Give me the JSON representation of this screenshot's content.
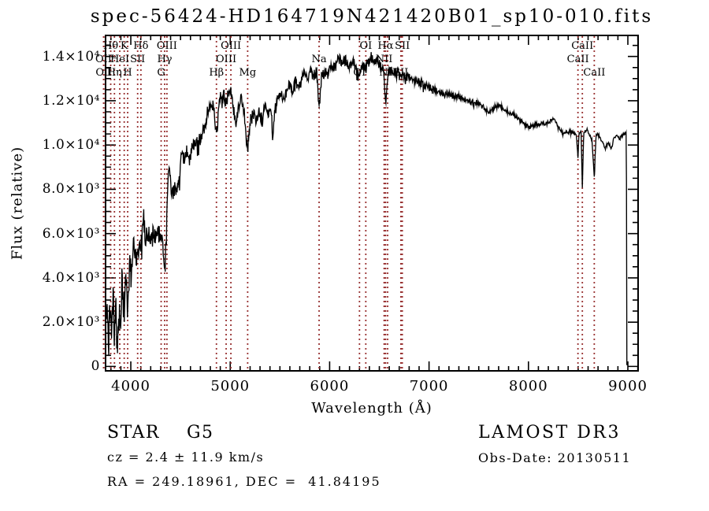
{
  "title": "spec-56424-HD164719N421420B01_sp10-010.fits",
  "colors": {
    "background": "#ffffff",
    "spectrum": "#000000",
    "frame": "#000000",
    "line_marker": "#993333",
    "text": "#000000"
  },
  "annotations": {
    "class_label": "STAR    G5",
    "survey": "LAMOST DR3",
    "cz": "cz = 2.4 ± 11.9 km/s",
    "obs_date": "Obs-Date: 20130511",
    "radec": "RA = 249.18961, DEC =  41.84195"
  },
  "chart_data": {
    "type": "line",
    "title": "spec-56424-HD164719N421420B01_sp10-010.fits",
    "xlabel": "Wavelength (Å)",
    "ylabel": "Flux (relative)",
    "xlim": [
      3746,
      9103
    ],
    "ylim": [
      -200,
      14950
    ],
    "grid": false,
    "xticks": {
      "values": [
        4000,
        5000,
        6000,
        7000,
        8000,
        9000
      ],
      "labels": [
        "4000",
        "5000",
        "6000",
        "7000",
        "8000",
        "9000"
      ]
    },
    "yticks": {
      "values": [
        0,
        2000,
        4000,
        6000,
        8000,
        10000,
        12000,
        14000
      ],
      "labels": [
        "0",
        "2.0×10³",
        "4.0×10³",
        "6.0×10³",
        "8.0×10³",
        "1.0×10⁴",
        "1.2×10⁴",
        "1.4×10⁴"
      ]
    },
    "x_minor_step": 100,
    "y_minor_step": 500,
    "spectral_lines": [
      {
        "name": "OII",
        "wavelength": 3726.0,
        "row": 2
      },
      {
        "name": "OII",
        "wavelength": 3728.8,
        "row": 3
      },
      {
        "name": "Hθ",
        "wavelength": 3797.9,
        "row": 1
      },
      {
        "name": "Hη",
        "wavelength": 3835.4,
        "row": 3
      },
      {
        "name": "HeI",
        "wavelength": 3889.0,
        "row": 2
      },
      {
        "name": "K",
        "wavelength": 3933.7,
        "row": 1
      },
      {
        "name": "H",
        "wavelength": 3968.5,
        "row": 3
      },
      {
        "name": "SII",
        "wavelength": 4068.6,
        "row": 2
      },
      {
        "name": "Hδ",
        "wavelength": 4101.7,
        "row": 1
      },
      {
        "name": "G",
        "wavelength": 4305.0,
        "row": 3
      },
      {
        "name": "Hγ",
        "wavelength": 4340.5,
        "row": 2
      },
      {
        "name": "OIII",
        "wavelength": 4363.2,
        "row": 1
      },
      {
        "name": "Hβ",
        "wavelength": 4861.3,
        "row": 3
      },
      {
        "name": "OIII",
        "wavelength": 4958.9,
        "row": 2
      },
      {
        "name": "OIII",
        "wavelength": 5006.8,
        "row": 1
      },
      {
        "name": "Mg",
        "wavelength": 5175.4,
        "row": 3
      },
      {
        "name": "Na",
        "wavelength": 5894.0,
        "row": 2
      },
      {
        "name": "OI",
        "wavelength": 6300.3,
        "row": 3
      },
      {
        "name": "OI",
        "wavelength": 6363.8,
        "row": 1
      },
      {
        "name": "NII",
        "wavelength": 6548.1,
        "row": 2
      },
      {
        "name": "Hα",
        "wavelength": 6562.8,
        "row": 1
      },
      {
        "name": "NII",
        "wavelength": 6583.5,
        "row": 3
      },
      {
        "name": "SII",
        "wavelength": 6716.4,
        "row": 3
      },
      {
        "name": "SII",
        "wavelength": 6730.8,
        "row": 1
      },
      {
        "name": "CaII",
        "wavelength": 8498.0,
        "row": 2
      },
      {
        "name": "CaII",
        "wavelength": 8542.1,
        "row": 1
      },
      {
        "name": "CaII",
        "wavelength": 8662.1,
        "row": 3
      }
    ],
    "envelope": {
      "wavelength": [
        3746,
        3760,
        3775,
        3790,
        3805,
        3820,
        3835,
        3850,
        3865,
        3880,
        3895,
        3910,
        3933,
        3950,
        3968,
        3985,
        4000,
        4030,
        4060,
        4090,
        4102,
        4130,
        4145,
        4170,
        4200,
        4230,
        4260,
        4290,
        4305,
        4320,
        4340,
        4355,
        4375,
        4395,
        4410,
        4430,
        4450,
        4470,
        4490,
        4510,
        4530,
        4560,
        4590,
        4620,
        4650,
        4680,
        4710,
        4740,
        4770,
        4800,
        4830,
        4861,
        4880,
        4900,
        4920,
        4940,
        4960,
        4980,
        5007,
        5030,
        5056,
        5080,
        5110,
        5140,
        5175,
        5200,
        5230,
        5260,
        5290,
        5320,
        5350,
        5380,
        5410,
        5429,
        5450,
        5480,
        5510,
        5540,
        5570,
        5600,
        5630,
        5660,
        5690,
        5720,
        5750,
        5780,
        5810,
        5840,
        5870,
        5894,
        5920,
        5950,
        5980,
        6010,
        6040,
        6070,
        6100,
        6130,
        6160,
        6190,
        6220,
        6250,
        6280,
        6300,
        6330,
        6360,
        6390,
        6420,
        6450,
        6480,
        6510,
        6540,
        6563,
        6590,
        6620,
        6650,
        6680,
        6710,
        6740,
        6770,
        6800,
        6850,
        6900,
        6950,
        7000,
        7050,
        7100,
        7150,
        7200,
        7250,
        7300,
        7350,
        7400,
        7450,
        7500,
        7550,
        7600,
        7650,
        7700,
        7750,
        7800,
        7850,
        7900,
        7950,
        8000,
        8050,
        8100,
        8150,
        8200,
        8255,
        8300,
        8350,
        8400,
        8450,
        8480,
        8498,
        8510,
        8530,
        8542,
        8556,
        8590,
        8620,
        8640,
        8662,
        8680,
        8710,
        8740,
        8770,
        8800,
        8835,
        8860,
        8890,
        8920,
        8950,
        8975,
        8985,
        8990
      ],
      "flux": [
        1600,
        3100,
        900,
        2600,
        1400,
        3300,
        1100,
        2900,
        700,
        2500,
        1500,
        3600,
        2300,
        3900,
        2800,
        4300,
        4600,
        5100,
        4800,
        5600,
        5100,
        6900,
        5700,
        5900,
        5700,
        6000,
        5800,
        6200,
        5500,
        5900,
        4100,
        5600,
        8600,
        8900,
        7600,
        8100,
        7700,
        8400,
        8100,
        9700,
        9300,
        9600,
        9300,
        9900,
        10200,
        10000,
        10500,
        10800,
        11300,
        11600,
        11900,
        10400,
        11500,
        12200,
        11800,
        12300,
        11900,
        12200,
        12400,
        11800,
        10900,
        11700,
        12000,
        11500,
        9900,
        11000,
        11500,
        11200,
        11600,
        11100,
        11700,
        11400,
        11900,
        10200,
        11800,
        12100,
        12300,
        12000,
        12500,
        12700,
        12400,
        12900,
        12600,
        13000,
        13300,
        13000,
        13400,
        13100,
        13300,
        11700,
        13100,
        13400,
        13200,
        13600,
        13400,
        13800,
        14000,
        13700,
        13900,
        13500,
        13800,
        13600,
        13400,
        13100,
        13600,
        13400,
        13800,
        14000,
        13700,
        13900,
        13600,
        13400,
        11900,
        13200,
        13400,
        13200,
        13300,
        13100,
        13200,
        13000,
        13100,
        12900,
        12800,
        12700,
        12600,
        12500,
        12400,
        12300,
        12300,
        12200,
        12200,
        12100,
        12000,
        11900,
        11900,
        11700,
        11500,
        11700,
        11800,
        11600,
        11500,
        11400,
        11200,
        11000,
        10800,
        10900,
        10900,
        11000,
        11000,
        11200,
        10800,
        10500,
        10600,
        10600,
        10500,
        9500,
        10550,
        10600,
        8050,
        10600,
        10700,
        10400,
        10200,
        8500,
        10500,
        10400,
        10200,
        9900,
        10100,
        9850,
        10300,
        10400,
        10300,
        10450,
        10550,
        10500,
        100
      ]
    },
    "noise_profile": {
      "wavelength": [
        3746,
        3950,
        4100,
        4400,
        4900,
        5400,
        6000,
        6600,
        7200,
        7800,
        8300,
        8990
      ],
      "amplitude": [
        1150,
        1000,
        600,
        500,
        430,
        380,
        330,
        260,
        190,
        140,
        110,
        90
      ]
    }
  }
}
